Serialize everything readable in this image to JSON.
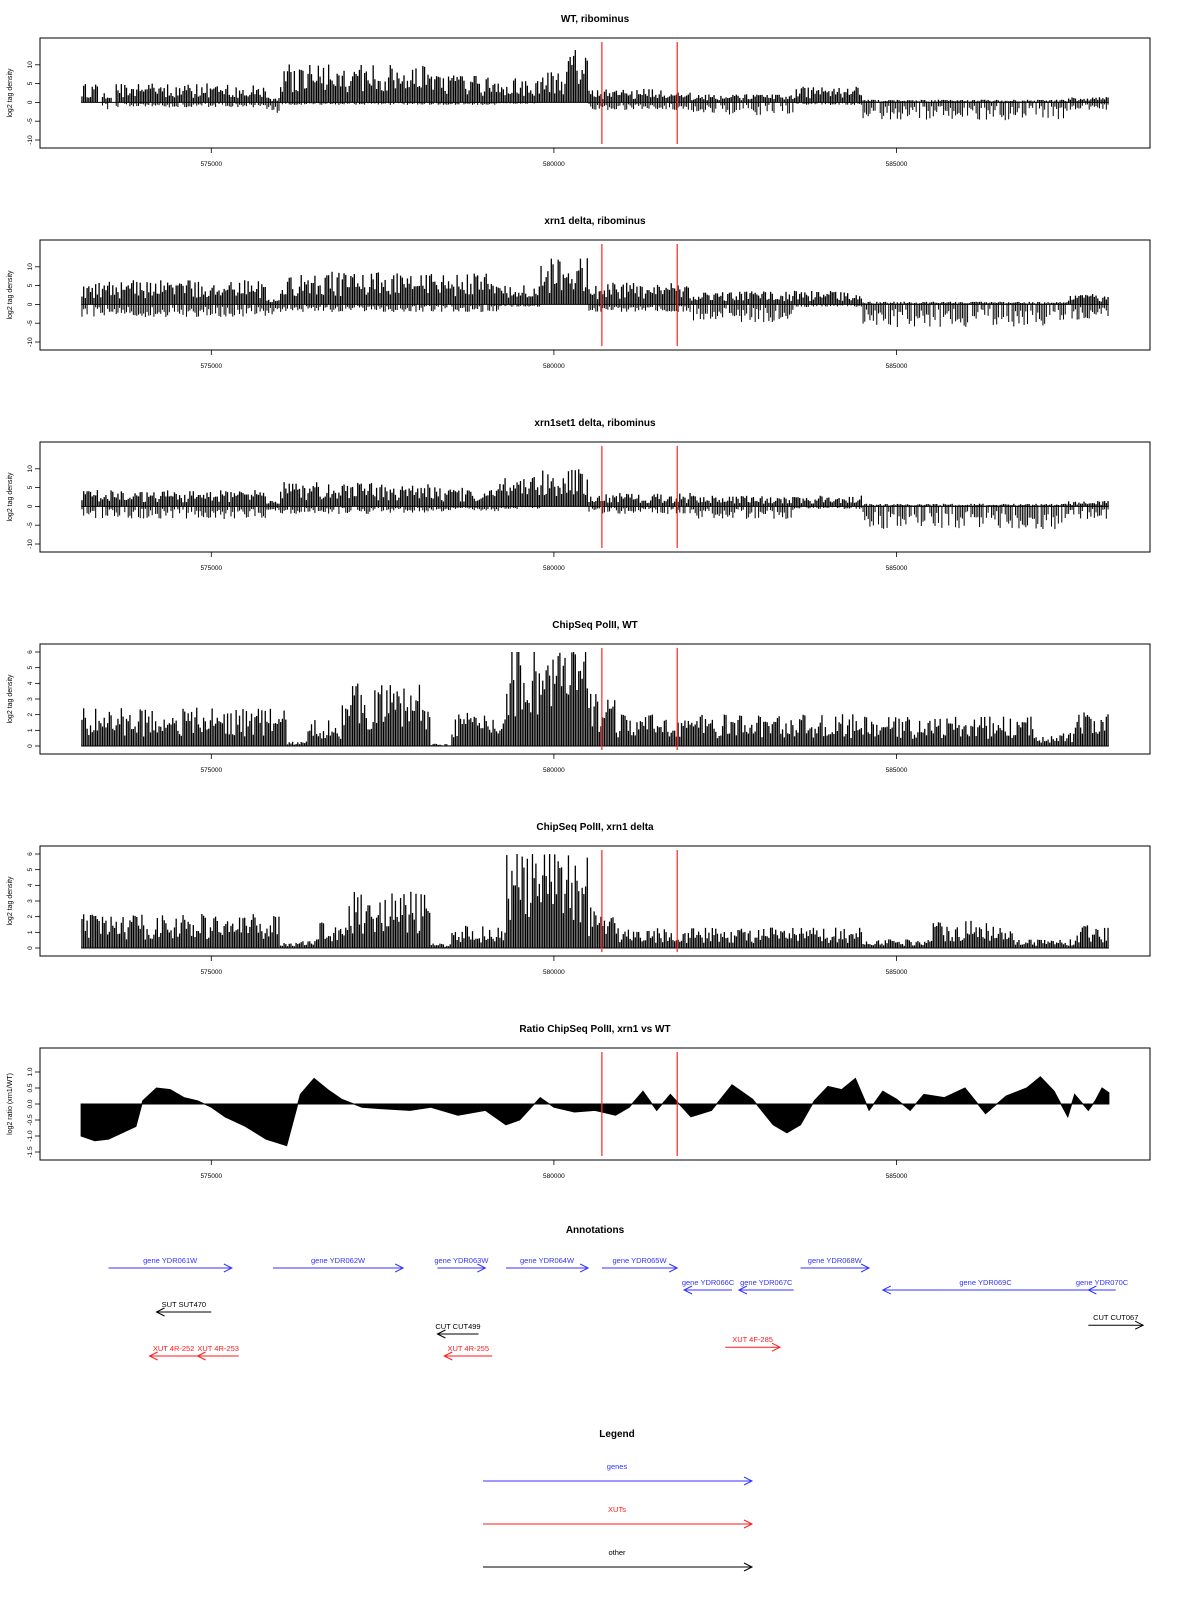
{
  "colors": {
    "track": "#000000",
    "marker": "#ff3333",
    "genes": "#3333ff",
    "xuts": "#ff1a1a",
    "other": "#000000"
  },
  "chart_data": [
    {
      "type": "bar",
      "title": "WT, ribominus",
      "ylabel": "log2 tag density",
      "ylim": [
        -10,
        15
      ],
      "yticks": [
        "-10",
        "-5",
        "0",
        "5",
        "10"
      ],
      "xlim": [
        572500,
        588700
      ],
      "xticks": [
        "575000",
        "580000",
        "585000"
      ],
      "markers_x": [
        580700,
        581800
      ],
      "x_range": [
        573100,
        588100
      ],
      "bins": 600,
      "segments": [
        {
          "x": [
            573100,
            573350
          ],
          "pos": 3.5,
          "neg": 0
        },
        {
          "x": [
            573400,
            573550
          ],
          "pos": 2,
          "neg": 1.5
        },
        {
          "x": [
            573600,
            575800
          ],
          "pos": 3.5,
          "neg": 1
        },
        {
          "x": [
            575800,
            576000
          ],
          "pos": 1,
          "neg": 2.5
        },
        {
          "x": [
            576000,
            578200
          ],
          "pos": 7,
          "neg": 0.5
        },
        {
          "x": [
            578200,
            579200
          ],
          "pos": 5,
          "neg": 0.5
        },
        {
          "x": [
            579200,
            579800
          ],
          "pos": 4.5,
          "neg": 0.3
        },
        {
          "x": [
            579800,
            580200
          ],
          "pos": 6,
          "neg": 0
        },
        {
          "x": [
            580200,
            580500
          ],
          "pos": 10,
          "neg": 0
        },
        {
          "x": [
            580500,
            582000
          ],
          "pos": 2.5,
          "neg": 1.5
        },
        {
          "x": [
            582000,
            583500
          ],
          "pos": 1.5,
          "neg": 2.5
        },
        {
          "x": [
            583500,
            584500
          ],
          "pos": 3,
          "neg": 0.5
        },
        {
          "x": [
            584500,
            587500
          ],
          "pos": 0.5,
          "neg": 3.5
        },
        {
          "x": [
            587500,
            588100
          ],
          "pos": 1,
          "neg": 1.5
        }
      ]
    },
    {
      "type": "bar",
      "title": "xrn1 delta, ribominus",
      "ylabel": "log2 tag density",
      "ylim": [
        -10,
        15
      ],
      "yticks": [
        "-10",
        "-5",
        "0",
        "5",
        "10"
      ],
      "xlim": [
        572500,
        588700
      ],
      "xticks": [
        "575000",
        "580000",
        "585000"
      ],
      "markers_x": [
        580700,
        581800
      ],
      "x_range": [
        573100,
        588100
      ],
      "bins": 600,
      "segments": [
        {
          "x": [
            573100,
            575800
          ],
          "pos": 4.5,
          "neg": 2.5
        },
        {
          "x": [
            575800,
            576000
          ],
          "pos": 1,
          "neg": 2
        },
        {
          "x": [
            576000,
            579200
          ],
          "pos": 6,
          "neg": 1.5
        },
        {
          "x": [
            579200,
            579800
          ],
          "pos": 3.5,
          "neg": 0.5
        },
        {
          "x": [
            579800,
            580500
          ],
          "pos": 8.5,
          "neg": 0
        },
        {
          "x": [
            580500,
            582000
          ],
          "pos": 4,
          "neg": 1.5
        },
        {
          "x": [
            582000,
            583500
          ],
          "pos": 2.5,
          "neg": 3.5
        },
        {
          "x": [
            583500,
            584500
          ],
          "pos": 2.5,
          "neg": 0.5
        },
        {
          "x": [
            584500,
            587500
          ],
          "pos": 0.5,
          "neg": 4.5
        },
        {
          "x": [
            587500,
            588100
          ],
          "pos": 2,
          "neg": 3
        }
      ]
    },
    {
      "type": "bar",
      "title": "xrn1set1 delta, ribominus",
      "ylabel": "log2 tag density",
      "ylim": [
        -10,
        15
      ],
      "yticks": [
        "-10",
        "-5",
        "0",
        "5",
        "10"
      ],
      "xlim": [
        572500,
        588700
      ],
      "xticks": [
        "575000",
        "580000",
        "585000"
      ],
      "markers_x": [
        580700,
        581800
      ],
      "x_range": [
        573100,
        588100
      ],
      "bins": 600,
      "segments": [
        {
          "x": [
            573100,
            575800
          ],
          "pos": 3,
          "neg": 2.5
        },
        {
          "x": [
            575800,
            576000
          ],
          "pos": 1,
          "neg": 1
        },
        {
          "x": [
            576000,
            578200
          ],
          "pos": 4.5,
          "neg": 1.5
        },
        {
          "x": [
            578200,
            579200
          ],
          "pos": 3.5,
          "neg": 1
        },
        {
          "x": [
            579200,
            579800
          ],
          "pos": 5.5,
          "neg": 0.5
        },
        {
          "x": [
            579800,
            580500
          ],
          "pos": 7,
          "neg": 0
        },
        {
          "x": [
            580500,
            582000
          ],
          "pos": 2.5,
          "neg": 1.5
        },
        {
          "x": [
            582000,
            583500
          ],
          "pos": 2,
          "neg": 2.5
        },
        {
          "x": [
            583500,
            584500
          ],
          "pos": 2,
          "neg": 0.5
        },
        {
          "x": [
            584500,
            587500
          ],
          "pos": 0.5,
          "neg": 4.5
        },
        {
          "x": [
            587500,
            588100
          ],
          "pos": 1,
          "neg": 2.5
        }
      ]
    },
    {
      "type": "bar",
      "title": "ChipSeq PolII, WT",
      "ylabel": "log2 tag density",
      "ylim": [
        0,
        6
      ],
      "yticks": [
        "0",
        "1",
        "2",
        "3",
        "4",
        "5",
        "6"
      ],
      "xlim": [
        572500,
        588700
      ],
      "xticks": [
        "575000",
        "580000",
        "585000"
      ],
      "markers_x": [
        580700,
        581800
      ],
      "x_range": [
        573100,
        588100
      ],
      "bins": 600,
      "segments": [
        {
          "x": [
            573100,
            576100
          ],
          "pos": 1.7,
          "neg": 0
        },
        {
          "x": [
            576100,
            576400
          ],
          "pos": 0.2,
          "neg": 0
        },
        {
          "x": [
            576400,
            576900
          ],
          "pos": 1.2,
          "neg": 0
        },
        {
          "x": [
            576900,
            578200
          ],
          "pos": 2.8,
          "neg": 0
        },
        {
          "x": [
            578200,
            578500
          ],
          "pos": 0.1,
          "neg": 0
        },
        {
          "x": [
            578500,
            579300
          ],
          "pos": 1.5,
          "neg": 0
        },
        {
          "x": [
            579300,
            580500
          ],
          "pos": 4.6,
          "neg": 0
        },
        {
          "x": [
            580500,
            580900
          ],
          "pos": 2.5,
          "neg": 0
        },
        {
          "x": [
            580900,
            584500
          ],
          "pos": 1.4,
          "neg": 0
        },
        {
          "x": [
            584500,
            587000
          ],
          "pos": 1.3,
          "neg": 0
        },
        {
          "x": [
            587000,
            587600
          ],
          "pos": 0.6,
          "neg": 0
        },
        {
          "x": [
            587600,
            588100
          ],
          "pos": 1.5,
          "neg": 0
        }
      ]
    },
    {
      "type": "bar",
      "title": "ChipSeq PolII, xrn1 delta",
      "ylabel": "log2 tag density",
      "ylim": [
        0,
        6
      ],
      "yticks": [
        "0",
        "1",
        "2",
        "3",
        "4",
        "5",
        "6"
      ],
      "xlim": [
        572500,
        588700
      ],
      "xticks": [
        "575000",
        "580000",
        "585000"
      ],
      "markers_x": [
        580700,
        581800
      ],
      "x_range": [
        573100,
        588100
      ],
      "bins": 600,
      "segments": [
        {
          "x": [
            573100,
            576000
          ],
          "pos": 1.5,
          "neg": 0
        },
        {
          "x": [
            576000,
            576500
          ],
          "pos": 0.3,
          "neg": 0
        },
        {
          "x": [
            576500,
            577000
          ],
          "pos": 1.2,
          "neg": 0
        },
        {
          "x": [
            577000,
            578200
          ],
          "pos": 2.5,
          "neg": 0
        },
        {
          "x": [
            578200,
            578500
          ],
          "pos": 0.2,
          "neg": 0
        },
        {
          "x": [
            578500,
            579300
          ],
          "pos": 1.0,
          "neg": 0
        },
        {
          "x": [
            579300,
            580500
          ],
          "pos": 4.4,
          "neg": 0
        },
        {
          "x": [
            580500,
            580900
          ],
          "pos": 2.0,
          "neg": 0
        },
        {
          "x": [
            580900,
            584500
          ],
          "pos": 0.9,
          "neg": 0
        },
        {
          "x": [
            584500,
            585500
          ],
          "pos": 0.4,
          "neg": 0
        },
        {
          "x": [
            585500,
            586700
          ],
          "pos": 1.2,
          "neg": 0
        },
        {
          "x": [
            586700,
            587600
          ],
          "pos": 0.4,
          "neg": 0
        },
        {
          "x": [
            587600,
            588100
          ],
          "pos": 1.0,
          "neg": 0
        }
      ]
    },
    {
      "type": "area",
      "title": "Ratio ChipSeq PolII, xrn1 vs WT",
      "ylabel": "log2 ratio (xrn1/WT)",
      "ylim": [
        -1.5,
        1.5
      ],
      "yticks": [
        "-1.5",
        "-1.0",
        "-0.5",
        "0.0",
        "0.5",
        "1.0"
      ],
      "xlim": [
        572500,
        588700
      ],
      "xticks": [
        "575000",
        "580000",
        "585000"
      ],
      "markers_x": [
        580700,
        581800
      ],
      "points": [
        [
          573100,
          -1.0
        ],
        [
          573300,
          -1.15
        ],
        [
          573500,
          -1.1
        ],
        [
          573700,
          -0.9
        ],
        [
          573900,
          -0.7
        ],
        [
          574000,
          0.1
        ],
        [
          574200,
          0.5
        ],
        [
          574400,
          0.45
        ],
        [
          574600,
          0.2
        ],
        [
          574800,
          0.1
        ],
        [
          575000,
          -0.1
        ],
        [
          575200,
          -0.4
        ],
        [
          575500,
          -0.7
        ],
        [
          575800,
          -1.1
        ],
        [
          576100,
          -1.3
        ],
        [
          576300,
          0.3
        ],
        [
          576500,
          0.8
        ],
        [
          576700,
          0.45
        ],
        [
          576900,
          0.15
        ],
        [
          577200,
          -0.1
        ],
        [
          577500,
          -0.15
        ],
        [
          577900,
          -0.2
        ],
        [
          578200,
          -0.1
        ],
        [
          578600,
          -0.35
        ],
        [
          579000,
          -0.2
        ],
        [
          579300,
          -0.65
        ],
        [
          579500,
          -0.5
        ],
        [
          579800,
          0.2
        ],
        [
          580000,
          -0.1
        ],
        [
          580300,
          -0.25
        ],
        [
          580600,
          -0.2
        ],
        [
          580900,
          -0.35
        ],
        [
          581100,
          -0.1
        ],
        [
          581300,
          0.4
        ],
        [
          581500,
          -0.2
        ],
        [
          581700,
          0.3
        ],
        [
          582000,
          -0.4
        ],
        [
          582300,
          -0.2
        ],
        [
          582600,
          0.6
        ],
        [
          582900,
          0.15
        ],
        [
          583200,
          -0.65
        ],
        [
          583400,
          -0.9
        ],
        [
          583600,
          -0.65
        ],
        [
          583800,
          0.1
        ],
        [
          584000,
          0.55
        ],
        [
          584200,
          0.45
        ],
        [
          584400,
          0.8
        ],
        [
          584600,
          -0.2
        ],
        [
          584800,
          0.4
        ],
        [
          585000,
          0.15
        ],
        [
          585200,
          -0.2
        ],
        [
          585400,
          0.3
        ],
        [
          585700,
          0.2
        ],
        [
          586000,
          0.5
        ],
        [
          586300,
          -0.3
        ],
        [
          586600,
          0.25
        ],
        [
          586900,
          0.5
        ],
        [
          587100,
          0.85
        ],
        [
          587300,
          0.4
        ],
        [
          587500,
          -0.4
        ],
        [
          587600,
          0.3
        ],
        [
          587800,
          -0.2
        ],
        [
          587900,
          0.1
        ],
        [
          588000,
          0.5
        ],
        [
          588100,
          0.35
        ]
      ]
    }
  ],
  "annotations": {
    "title": "Annotations",
    "features": [
      {
        "label": "gene YDR061W",
        "type": "gene",
        "start": 573500,
        "end": 575300,
        "dir": "right",
        "row": 0
      },
      {
        "label": "gene YDR062W",
        "type": "gene",
        "start": 575900,
        "end": 577800,
        "dir": "right",
        "row": 0
      },
      {
        "label": "gene YDR063W",
        "type": "gene",
        "start": 578300,
        "end": 579000,
        "dir": "right",
        "row": 0
      },
      {
        "label": "gene YDR064W",
        "type": "gene",
        "start": 579300,
        "end": 580500,
        "dir": "right",
        "row": 0
      },
      {
        "label": "gene YDR065W",
        "type": "gene",
        "start": 580700,
        "end": 581800,
        "dir": "right",
        "row": 0
      },
      {
        "label": "gene YDR066C",
        "type": "gene",
        "start": 581900,
        "end": 582600,
        "dir": "left",
        "row": 1
      },
      {
        "label": "gene YDR067C",
        "type": "gene",
        "start": 582700,
        "end": 583500,
        "dir": "left",
        "row": 1
      },
      {
        "label": "gene YDR068W",
        "type": "gene",
        "start": 583600,
        "end": 584600,
        "dir": "right",
        "row": 0
      },
      {
        "label": "gene YDR069C",
        "type": "gene",
        "start": 584800,
        "end": 587800,
        "dir": "left",
        "row": 1
      },
      {
        "label": "gene YDR070C",
        "type": "gene",
        "start": 587800,
        "end": 588200,
        "dir": "left",
        "row": 1
      },
      {
        "label": "SUT SUT470",
        "type": "other",
        "start": 574200,
        "end": 575000,
        "dir": "left",
        "row": 2
      },
      {
        "label": "CUT CUT499",
        "type": "other",
        "start": 578300,
        "end": 578900,
        "dir": "left",
        "row": 3
      },
      {
        "label": "CUT CUT067",
        "type": "other",
        "start": 587800,
        "end": 588600,
        "dir": "right",
        "row": 2.6
      },
      {
        "label": "XUT 4R-252",
        "type": "xut",
        "start": 574100,
        "end": 574800,
        "dir": "left",
        "row": 4
      },
      {
        "label": "XUT 4R-253",
        "type": "xut",
        "start": 574800,
        "end": 575400,
        "dir": "left",
        "row": 4
      },
      {
        "label": "XUT 4R-255",
        "type": "xut",
        "start": 578400,
        "end": 579100,
        "dir": "left",
        "row": 4
      },
      {
        "label": "XUT 4F-285",
        "type": "xut",
        "start": 582500,
        "end": 583300,
        "dir": "right",
        "row": 3.6
      }
    ]
  },
  "legend": {
    "title": "Legend",
    "items": [
      {
        "label": "genes",
        "type": "gene"
      },
      {
        "label": "XUTs",
        "type": "xut"
      },
      {
        "label": "other",
        "type": "other"
      }
    ]
  }
}
